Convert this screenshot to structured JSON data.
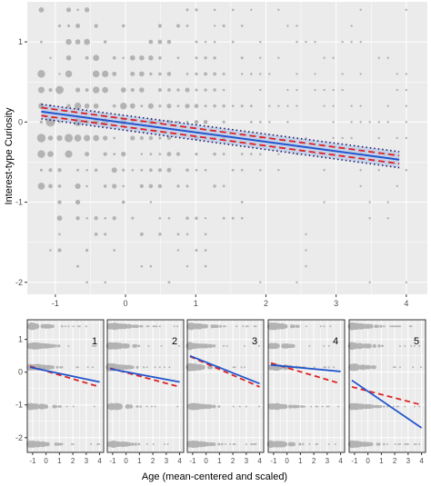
{
  "figure": {
    "ylabel": "Interest-type Curiosity",
    "xlabel": "Age (mean-centered and scaled)"
  },
  "colors": {
    "panel_bg": "#ebebeb",
    "grid": "#ffffff",
    "points": "#b3b3b3",
    "fit_line": "#2255cc",
    "dashed": "#dd2222",
    "dotted": "#1a1a66",
    "band": "#a8bde6"
  },
  "chart_data": [
    {
      "type": "scatter",
      "title": "",
      "xlabel": "",
      "ylabel": "Interest-type Curiosity",
      "xlim": [
        -1.4,
        4.3
      ],
      "ylim": [
        -2.15,
        1.5
      ],
      "xticks": [
        -1,
        0,
        1,
        2,
        3,
        4
      ],
      "yticks": [
        -2,
        -1,
        0,
        1
      ],
      "grid": true,
      "series": [
        {
          "role": "points",
          "y_levels": [
            1.4,
            1.2,
            1.0,
            0.8,
            0.6,
            0.4,
            0.2,
            0.0,
            -0.2,
            -0.4,
            -0.6,
            -0.8,
            -1.0,
            -1.2,
            -1.4,
            -1.6,
            -1.8,
            -2.0
          ]
        },
        {
          "role": "fit",
          "x": [
            -1.2,
            3.9
          ],
          "y": [
            0.13,
            -0.47
          ]
        },
        {
          "role": "ci-dashed",
          "x": [
            -1.2,
            3.9
          ],
          "upper": [
            0.18,
            -0.42
          ],
          "lower": [
            0.08,
            -0.52
          ]
        },
        {
          "role": "ci-dotted",
          "x": [
            -1.2,
            3.9
          ],
          "upper": [
            0.22,
            -0.37
          ],
          "lower": [
            0.04,
            -0.57
          ]
        }
      ]
    },
    {
      "type": "scatter",
      "panels": [
        {
          "label": "1",
          "blue": [
            0.15,
            -0.3
          ],
          "red": [
            0.18,
            -0.45
          ]
        },
        {
          "label": "2",
          "blue": [
            0.1,
            -0.3
          ],
          "red": [
            0.12,
            -0.45
          ]
        },
        {
          "label": "3",
          "blue": [
            0.5,
            -0.35
          ],
          "red": [
            0.48,
            -0.45
          ]
        },
        {
          "label": "4",
          "blue": [
            0.22,
            0.02
          ],
          "red": [
            0.28,
            -0.35
          ]
        },
        {
          "label": "5",
          "blue": [
            -0.25,
            -1.7
          ],
          "red": [
            -0.45,
            -1.0
          ]
        }
      ],
      "xlim": [
        -1.4,
        4.3
      ],
      "ylim": [
        -2.45,
        1.6
      ],
      "xticks": [
        -1,
        0,
        1,
        2,
        3,
        4
      ],
      "yticks": [
        -2,
        -1,
        0,
        1
      ],
      "fit_x": [
        -1.2,
        4.0
      ],
      "point_levels": [
        1.4,
        0.8,
        0.15,
        -1.05,
        -2.2
      ],
      "grid": true
    }
  ]
}
